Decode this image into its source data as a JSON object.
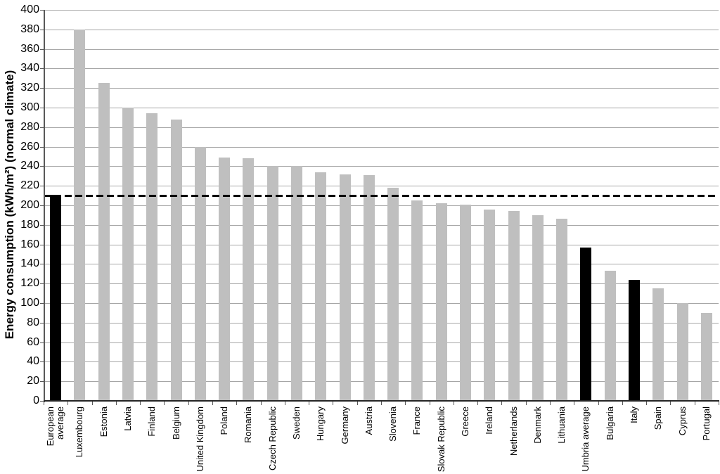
{
  "chart_data": {
    "type": "bar",
    "title": "",
    "xlabel": "",
    "ylabel": "Energy consumption (kWh/m²) (normal climate)",
    "ylim": [
      0,
      400
    ],
    "ytick_step": 20,
    "grid": true,
    "legend": "none",
    "categories": [
      "European average",
      "Luxembourg",
      "Estonia",
      "Latvia",
      "Finland",
      "Belgium",
      "United Kingdom",
      "Poland",
      "Romania",
      "Czech Republic",
      "Sweden",
      "Hungary",
      "Germany",
      "Austria",
      "Slovenia",
      "France",
      "Slovak Republic",
      "Greece",
      "Ireland",
      "Netherlands",
      "Denmark",
      "Lithuania",
      "Umbria average",
      "Bulgaria",
      "Italy",
      "Spain",
      "Cyprus",
      "Portugal"
    ],
    "values": [
      211,
      380,
      325,
      300,
      294,
      288,
      260,
      249,
      248,
      240,
      240,
      234,
      232,
      231,
      218,
      205,
      202,
      201,
      196,
      194,
      190,
      186,
      157,
      133,
      124,
      115,
      100,
      90
    ],
    "highlighted_categories": [
      "European average",
      "Umbria average",
      "Italy"
    ],
    "highlighted_indices": [
      0,
      22,
      24
    ],
    "reference_line": {
      "value": 210,
      "style": "dashed",
      "label": ""
    }
  },
  "colors": {
    "bar_default": "#bfbfbf",
    "bar_highlight": "#000000",
    "gridline": "#a6a6a6",
    "axis": "#595959",
    "tick": "#595959",
    "reference_line": "#000000",
    "background": "#ffffff",
    "text": "#000000"
  }
}
